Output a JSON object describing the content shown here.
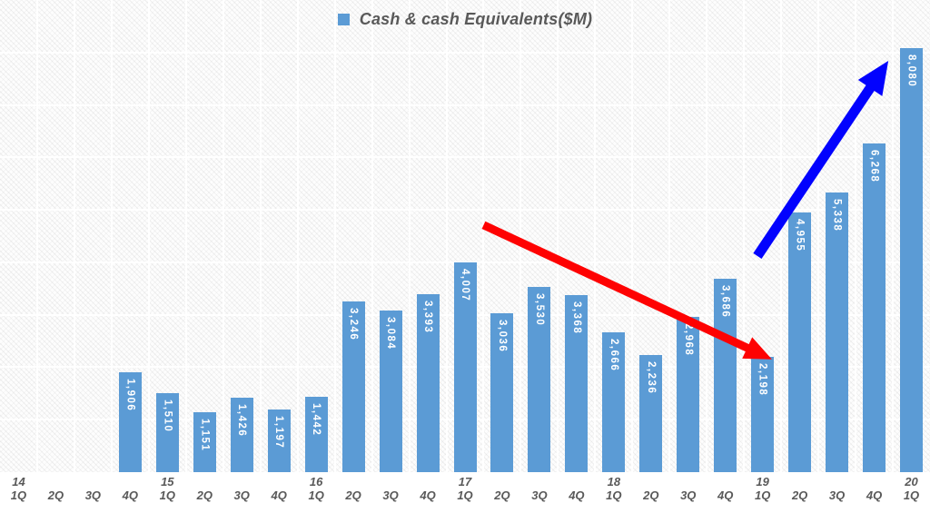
{
  "chart_data": {
    "type": "bar",
    "title": "Cash & cash Equivalents($M)",
    "legend": {
      "label": "Cash & cash Equivalents($M)",
      "position": "top-center"
    },
    "colors": {
      "bar": "#5B9BD5",
      "bar_value_label": "#FFFFFF",
      "axis_text": "#595959",
      "gridline": "#FFFFFF"
    },
    "grid": true,
    "xlabel": "",
    "ylabel": "",
    "ylim": [
      0,
      9000
    ],
    "gridline_interval": 1000,
    "categories": [
      {
        "year": "14",
        "quarter": "1Q"
      },
      {
        "year": "",
        "quarter": "2Q"
      },
      {
        "year": "",
        "quarter": "3Q"
      },
      {
        "year": "",
        "quarter": "4Q"
      },
      {
        "year": "15",
        "quarter": "1Q"
      },
      {
        "year": "",
        "quarter": "2Q"
      },
      {
        "year": "",
        "quarter": "3Q"
      },
      {
        "year": "",
        "quarter": "4Q"
      },
      {
        "year": "16",
        "quarter": "1Q"
      },
      {
        "year": "",
        "quarter": "2Q"
      },
      {
        "year": "",
        "quarter": "3Q"
      },
      {
        "year": "",
        "quarter": "4Q"
      },
      {
        "year": "17",
        "quarter": "1Q"
      },
      {
        "year": "",
        "quarter": "2Q"
      },
      {
        "year": "",
        "quarter": "3Q"
      },
      {
        "year": "",
        "quarter": "4Q"
      },
      {
        "year": "18",
        "quarter": "1Q"
      },
      {
        "year": "",
        "quarter": "2Q"
      },
      {
        "year": "",
        "quarter": "3Q"
      },
      {
        "year": "",
        "quarter": "4Q"
      },
      {
        "year": "19",
        "quarter": "1Q"
      },
      {
        "year": "",
        "quarter": "2Q"
      },
      {
        "year": "",
        "quarter": "3Q"
      },
      {
        "year": "",
        "quarter": "4Q"
      },
      {
        "year": "20",
        "quarter": "1Q"
      }
    ],
    "series": [
      {
        "name": "Cash & cash Equivalents($M)",
        "values": [
          null,
          null,
          null,
          1906,
          1510,
          1151,
          1426,
          1197,
          1442,
          3246,
          3084,
          3393,
          4007,
          3036,
          3530,
          3368,
          2666,
          2236,
          2968,
          3686,
          2198,
          4955,
          5338,
          6268,
          8080
        ],
        "labels": [
          "",
          "",
          "",
          "1,906",
          "1,510",
          "1,151",
          "1,426",
          "1,197",
          "1,442",
          "3,246",
          "3,084",
          "3,393",
          "4,007",
          "3,036",
          "3,530",
          "3,368",
          "2,666",
          "2,236",
          "2,968",
          "3,686",
          "2,198",
          "4,955",
          "5,338",
          "6,268",
          "8,080"
        ]
      }
    ],
    "annotations": [
      {
        "id": "downtrend-arrow",
        "type": "arrow",
        "color": "#FE0202",
        "trend": "decline",
        "from_category": "17 2Q",
        "to_category": "19 1Q",
        "from": {
          "x_index": 13.0,
          "value": 4710
        },
        "to": {
          "x_index": 20.75,
          "value": 2150
        }
      },
      {
        "id": "uptrend-arrow",
        "type": "arrow",
        "color": "#0202FE",
        "trend": "growth",
        "from_category": "19 1Q",
        "to_category": "20 1Q",
        "from": {
          "x_index": 20.36,
          "value": 4120
        },
        "to": {
          "x_index": 23.88,
          "value": 7840
        }
      }
    ]
  }
}
